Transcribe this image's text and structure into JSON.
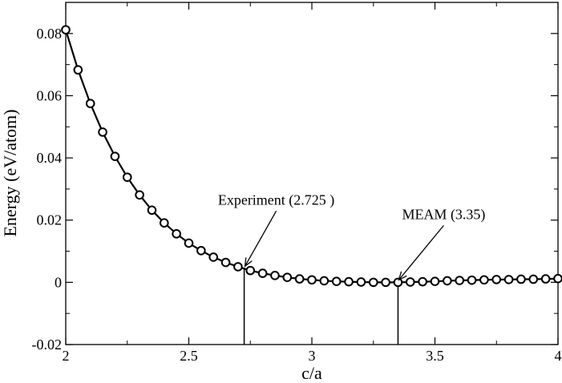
{
  "chart_data": {
    "type": "line",
    "title": "",
    "xlabel": "c/a",
    "ylabel": "Energy (eV/atom)",
    "xlim": [
      2,
      4
    ],
    "ylim": [
      -0.02,
      0.09
    ],
    "xticks": [
      2,
      2.5,
      3,
      3.5,
      4
    ],
    "xtick_labels": [
      "2",
      "2.5",
      "3",
      "3.5",
      "4"
    ],
    "yticks": [
      -0.02,
      0,
      0.02,
      0.04,
      0.06,
      0.08
    ],
    "ytick_labels": [
      "-0.02",
      "0",
      "0.02",
      "0.04",
      "0.06",
      "0.08"
    ],
    "grid": false,
    "legend": "none",
    "markers": "open-circle",
    "line_color": "#000000",
    "series": [
      {
        "x": [
          2.0,
          2.05,
          2.1,
          2.15,
          2.2,
          2.25,
          2.3,
          2.35,
          2.4,
          2.45,
          2.5,
          2.55,
          2.6,
          2.65,
          2.7,
          2.75,
          2.8,
          2.85,
          2.9,
          2.95,
          3.0,
          3.05,
          3.1,
          3.15,
          3.2,
          3.25,
          3.3,
          3.35,
          3.4,
          3.45,
          3.5,
          3.55,
          3.6,
          3.65,
          3.7,
          3.75,
          3.8,
          3.85,
          3.9,
          3.95,
          4.0
        ],
        "y": [
          0.0812,
          0.0683,
          0.0575,
          0.0483,
          0.0405,
          0.0338,
          0.0281,
          0.0232,
          0.0191,
          0.0156,
          0.0126,
          0.0102,
          0.0081,
          0.0064,
          0.005,
          0.0038,
          0.0029,
          0.0022,
          0.0016,
          0.0011,
          0.0008,
          0.0005,
          0.0003,
          0.0002,
          0.0001,
          0.0,
          0.0,
          0.0,
          0.0001,
          0.0002,
          0.0003,
          0.0005,
          0.0006,
          0.0007,
          0.0008,
          0.0009,
          0.0009,
          0.001,
          0.001,
          0.0011,
          0.0012
        ]
      }
    ],
    "annotations": [
      {
        "text": "Experiment (2.725 )",
        "x": 2.725
      },
      {
        "text": "MEAM (3.35)",
        "x": 3.35
      }
    ]
  }
}
